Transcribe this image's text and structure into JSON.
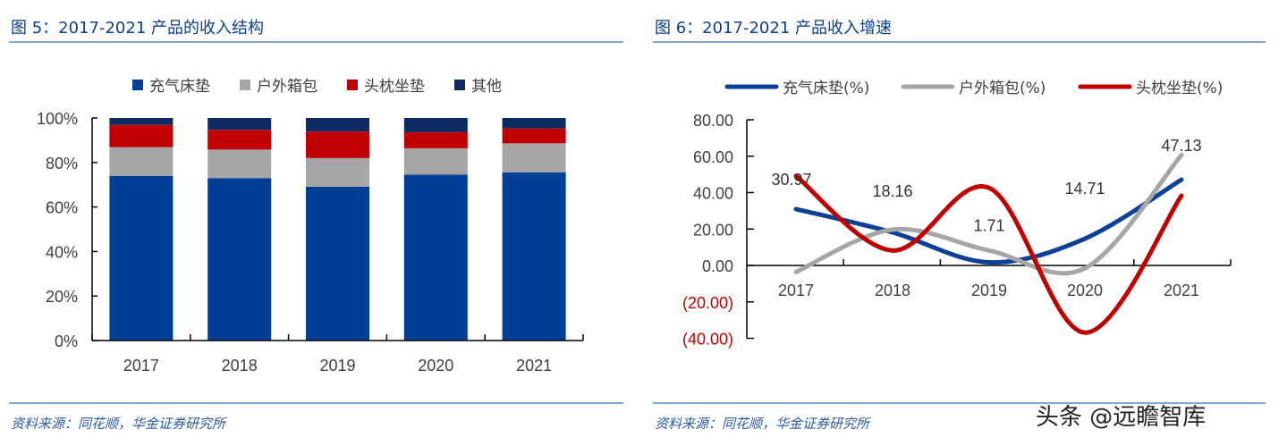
{
  "left": {
    "title": "图 5：2017-2021 产品的收入结构",
    "source": "资料来源：同花顺，华金证券研究所"
  },
  "right": {
    "title": "图 6：2017-2021 产品收入增速",
    "source": "资料来源：同花顺，华金证券研究所"
  },
  "watermark": "头条 @远瞻智库",
  "chart_data": [
    {
      "type": "bar",
      "stacked": true,
      "categories": [
        "2017",
        "2018",
        "2019",
        "2020",
        "2021"
      ],
      "ylim": [
        0,
        100
      ],
      "yticks": [
        "0%",
        "20%",
        "40%",
        "60%",
        "80%",
        "100%"
      ],
      "legend": "top",
      "grid": false,
      "series": [
        {
          "name": "充气床垫",
          "color": "#003f98",
          "values": [
            73.9,
            72.9,
            69.1,
            74.5,
            75.5
          ]
        },
        {
          "name": "户外箱包",
          "color": "#a6a6a6",
          "values": [
            13.0,
            12.9,
            12.9,
            11.9,
            13.1
          ]
        },
        {
          "name": "头枕坐垫",
          "color": "#c00000",
          "values": [
            10.0,
            8.9,
            11.9,
            7.2,
            6.7
          ]
        },
        {
          "name": "其他",
          "color": "#0d2a63",
          "values": [
            3.1,
            5.3,
            6.1,
            6.4,
            4.7
          ]
        }
      ]
    },
    {
      "type": "line",
      "smooth": true,
      "categories": [
        "2017",
        "2018",
        "2019",
        "2020",
        "2021"
      ],
      "ylim": [
        -40,
        80
      ],
      "yticks": [
        "(40.00)",
        "(20.00)",
        "0.00",
        "20.00",
        "40.00",
        "60.00",
        "80.00"
      ],
      "negative_tick_color": "#c00000",
      "legend": "top",
      "grid": false,
      "series": [
        {
          "name": "充气床垫(%)",
          "color": "#0b3f98",
          "values": [
            30.97,
            18.16,
            1.71,
            14.71,
            47.13
          ],
          "labels": [
            "30.97",
            "18.16",
            "1.71",
            "14.71",
            "47.13"
          ]
        },
        {
          "name": "户外箱包(%)",
          "color": "#a6a6a6",
          "values": [
            -3.6,
            19.7,
            8.2,
            -1.6,
            60.7
          ]
        },
        {
          "name": "头枕坐垫(%)",
          "color": "#c00000",
          "values": [
            49.2,
            8.2,
            42.6,
            -36.9,
            38.3
          ]
        }
      ]
    }
  ]
}
